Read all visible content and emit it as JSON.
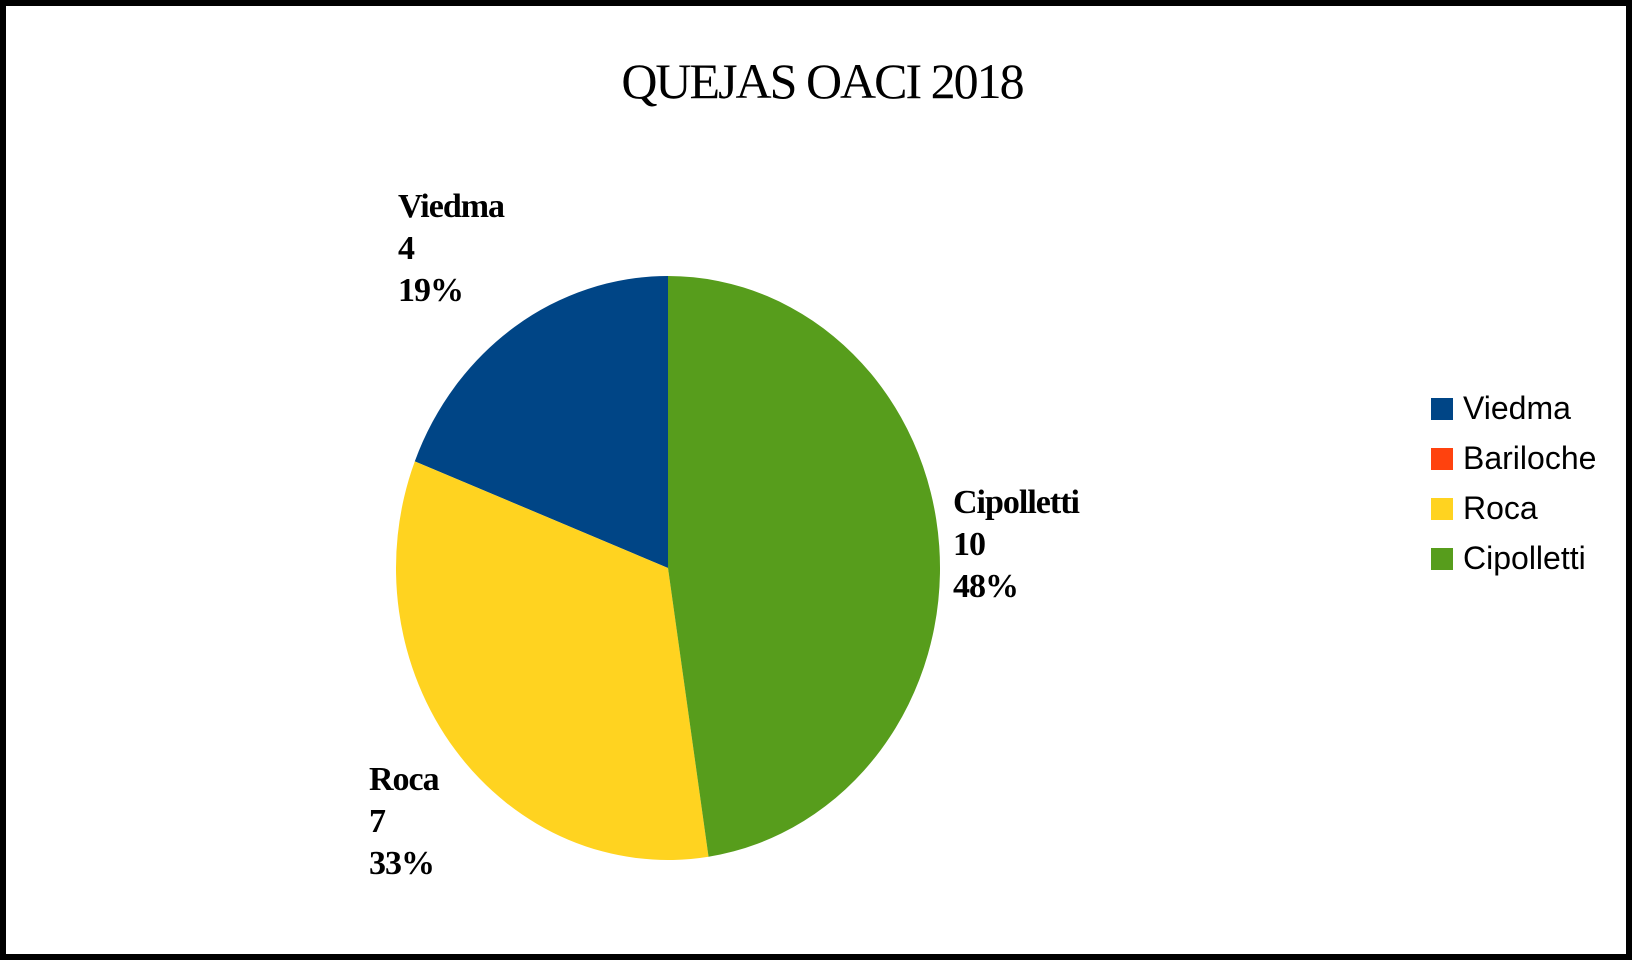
{
  "chart_data": {
    "type": "pie",
    "title": "QUEJAS OACI 2018",
    "categories": [
      "Viedma",
      "Bariloche",
      "Roca",
      "Cipolletti"
    ],
    "values": [
      4,
      0,
      7,
      10
    ],
    "percent_labels": [
      "19%",
      "0%",
      "33%",
      "48%"
    ],
    "colors": [
      "#004586",
      "#ff420e",
      "#ffd320",
      "#579d1c"
    ],
    "data_labels": [
      {
        "category": "Viedma",
        "value": "4",
        "percent": "19%"
      },
      {
        "category": "Roca",
        "value": "7",
        "percent": "33%"
      },
      {
        "category": "Cipolletti",
        "value": "10",
        "percent": "48%"
      }
    ],
    "legend": {
      "placement": "right",
      "items": [
        {
          "label": "Viedma",
          "color": "#004586"
        },
        {
          "label": "Bariloche",
          "color": "#ff420e"
        },
        {
          "label": "Roca",
          "color": "#ffd320"
        },
        {
          "label": "Cipolletti",
          "color": "#579d1c"
        }
      ]
    }
  }
}
